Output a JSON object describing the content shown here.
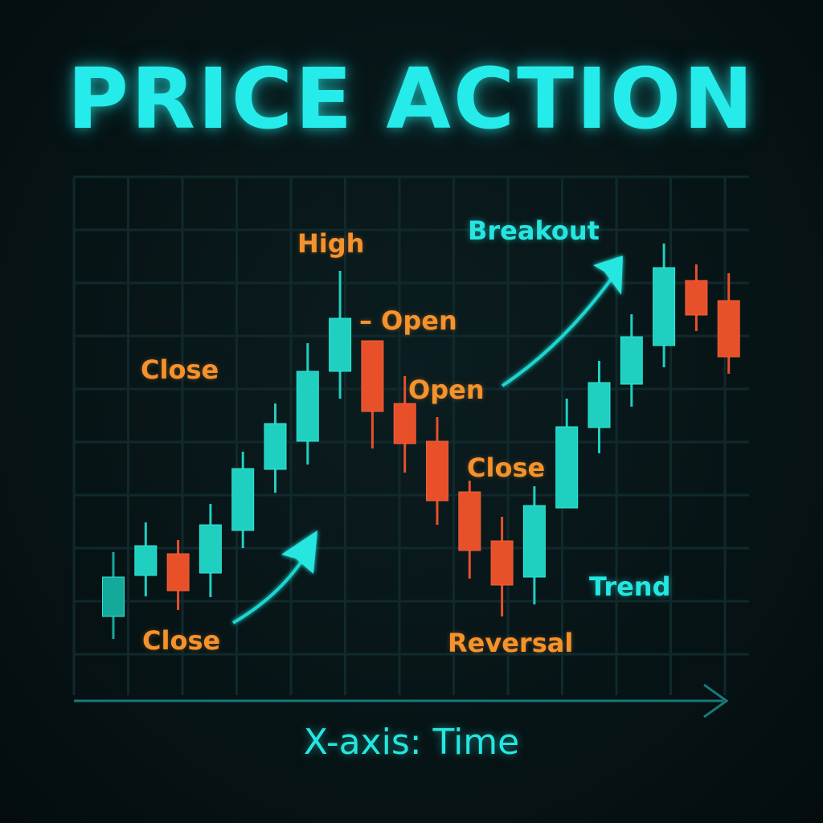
{
  "chart_data": {
    "type": "candlestick",
    "title": "PRICE ACTION",
    "xlabel": "X-axis: Time",
    "ylabel": "",
    "grid": true,
    "colors": {
      "bullish": "#1fcfc0",
      "bearish": "#e8502a",
      "annotation": "#f6922b",
      "highlight": "#25ecea"
    },
    "candles": [
      {
        "o": 13.3,
        "h": 21.3,
        "l": 10.5,
        "c": 18.2
      },
      {
        "o": 18.4,
        "h": 25.0,
        "l": 15.8,
        "c": 22.1
      },
      {
        "o": 21.1,
        "h": 22.8,
        "l": 14.1,
        "c": 16.5
      },
      {
        "o": 18.7,
        "h": 27.3,
        "l": 15.7,
        "c": 24.7
      },
      {
        "o": 24.0,
        "h": 33.8,
        "l": 21.8,
        "c": 31.7
      },
      {
        "o": 31.6,
        "h": 39.8,
        "l": 28.7,
        "c": 37.3
      },
      {
        "o": 35.1,
        "h": 47.3,
        "l": 32.2,
        "c": 43.8
      },
      {
        "o": 43.8,
        "h": 56.3,
        "l": 40.4,
        "c": 50.4
      },
      {
        "o": 47.6,
        "h": 47.6,
        "l": 34.2,
        "c": 38.8
      },
      {
        "o": 39.8,
        "h": 43.2,
        "l": 31.2,
        "c": 34.8
      },
      {
        "o": 35.1,
        "h": 38.1,
        "l": 24.7,
        "c": 27.7
      },
      {
        "o": 28.8,
        "h": 30.2,
        "l": 18.0,
        "c": 21.5
      },
      {
        "o": 22.7,
        "h": 25.7,
        "l": 13.3,
        "c": 17.2
      },
      {
        "o": 18.2,
        "h": 29.5,
        "l": 14.8,
        "c": 27.1
      },
      {
        "o": 26.8,
        "h": 40.4,
        "l": 26.8,
        "c": 36.9
      },
      {
        "o": 36.8,
        "h": 45.1,
        "l": 33.6,
        "c": 42.4
      },
      {
        "o": 42.2,
        "h": 50.9,
        "l": 39.4,
        "c": 48.1
      },
      {
        "o": 47.0,
        "h": 59.7,
        "l": 44.3,
        "c": 56.7
      },
      {
        "o": 55.1,
        "h": 57.1,
        "l": 48.8,
        "c": 50.8
      },
      {
        "o": 52.6,
        "h": 56.0,
        "l": 43.5,
        "c": 45.6
      }
    ],
    "annotations": {
      "high": "High",
      "open_1": "– Open",
      "close_1": "Close",
      "open_2": "Open",
      "close_2": "Close",
      "close_3": "Close",
      "reversal": "Reversal",
      "breakout": "Breakout",
      "trend": "Trend"
    }
  }
}
